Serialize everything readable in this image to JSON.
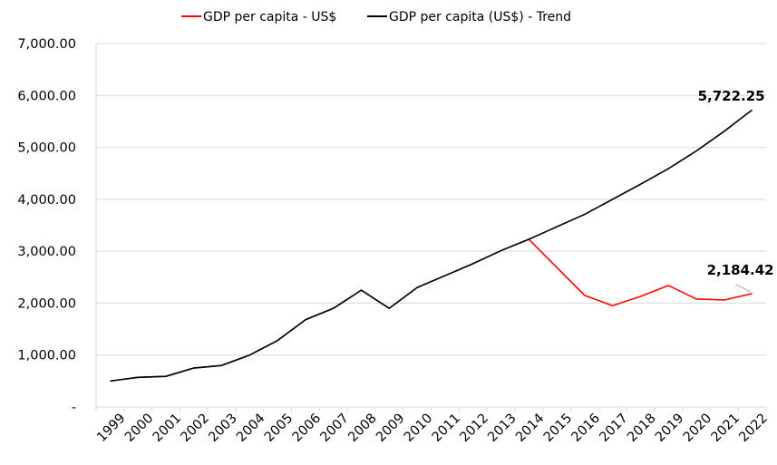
{
  "chart_data": {
    "type": "line",
    "title": "",
    "xlabel": "",
    "ylabel": "",
    "x": [
      "1999",
      "2000",
      "2001",
      "2002",
      "2003",
      "2004",
      "2005",
      "2006",
      "2007",
      "2008",
      "2009",
      "2010",
      "2011",
      "2012",
      "2013",
      "2014",
      "2015",
      "2016",
      "2017",
      "2018",
      "2019",
      "2020",
      "2021",
      "2022"
    ],
    "ylim": [
      0,
      7000
    ],
    "yticks": [
      0,
      1000,
      2000,
      3000,
      4000,
      5000,
      6000,
      7000
    ],
    "ytick_labels": [
      "-",
      "1,000.00",
      "2,000.00",
      "3,000.00",
      "4,000.00",
      "5,000.00",
      "6,000.00",
      "7,000.00"
    ],
    "grid": "horizontal",
    "legend_position": "top",
    "series": [
      {
        "name": "GDP per capita - US$",
        "color": "#ff0000",
        "values": [
          500,
          570,
          590,
          750,
          800,
          1000,
          1280,
          1680,
          1900,
          2250,
          1900,
          2300,
          2530,
          2760,
          3010,
          3230,
          2690,
          2150,
          1950,
          2130,
          2340,
          2080,
          2060,
          2184.42
        ]
      },
      {
        "name": "GDP per capita (US$) - Trend",
        "color": "#000000",
        "values": [
          500,
          570,
          590,
          750,
          800,
          1000,
          1280,
          1680,
          1900,
          2250,
          1900,
          2300,
          2530,
          2760,
          3010,
          3230,
          3470,
          3710,
          4000,
          4290,
          4590,
          4930,
          5310,
          5722.25
        ]
      }
    ],
    "annotations": [
      {
        "series": 1,
        "index": 23,
        "text": "5,722.25"
      },
      {
        "series": 0,
        "index": 23,
        "text": "2,184.42"
      }
    ]
  }
}
